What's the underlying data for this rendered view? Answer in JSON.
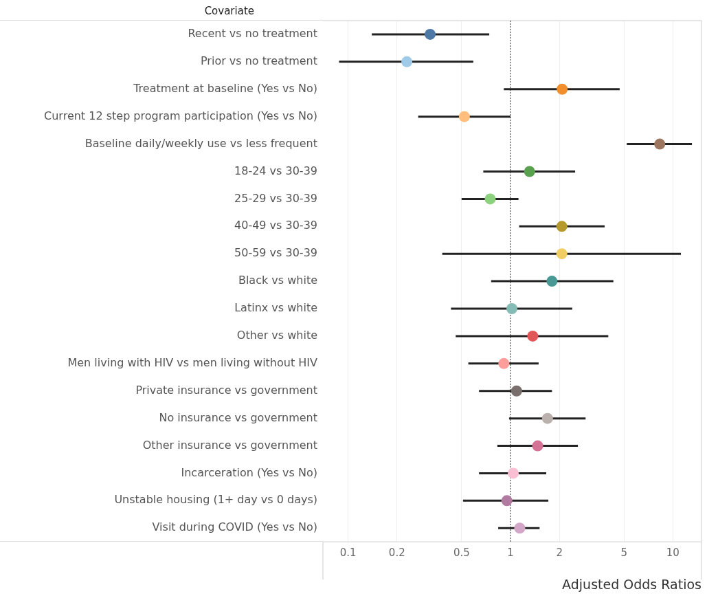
{
  "chart_data": {
    "type": "scatter",
    "orientation": "horizontal",
    "ylabel": "Covariate",
    "xlabel": "Adjusted Odds Ratios",
    "categories": [
      "Recent vs no treatment",
      "Prior vs no treatment",
      "Treatment at baseline (Yes vs No)",
      "Current 12 step program participation (Yes vs No)",
      "Baseline daily/weekly use vs less frequent",
      "18-24 vs 30-39",
      "25-29 vs 30-39",
      "40-49 vs 30-39",
      "50-59 vs 30-39",
      "Black vs white",
      "Latinx vs white",
      "Other vs white",
      "Men living with HIV vs men living without HIV",
      "Private insurance vs government",
      "No insurance vs government",
      "Other insurance vs government",
      "Incarceration (Yes vs No)",
      "Unstable housing (1+ day vs 0 days)",
      "Visit during COVID (Yes vs No)"
    ],
    "values": [
      0.32,
      0.23,
      2.08,
      0.52,
      8.3,
      1.31,
      0.75,
      2.07,
      2.07,
      1.8,
      1.02,
      1.37,
      0.91,
      1.09,
      1.69,
      1.47,
      1.04,
      0.95,
      1.14
    ],
    "errors": [
      [
        0.14,
        0.74
      ],
      [
        0.088,
        0.59
      ],
      [
        0.91,
        4.7
      ],
      [
        0.27,
        1.0
      ],
      [
        5.2,
        13.1
      ],
      [
        0.68,
        2.5
      ],
      [
        0.5,
        1.12
      ],
      [
        1.13,
        3.8
      ],
      [
        0.38,
        11.2
      ],
      [
        0.76,
        4.3
      ],
      [
        0.43,
        2.4
      ],
      [
        0.46,
        4.0
      ],
      [
        0.55,
        1.49
      ],
      [
        0.64,
        1.8
      ],
      [
        0.98,
        2.9
      ],
      [
        0.83,
        2.6
      ],
      [
        0.64,
        1.66
      ],
      [
        0.51,
        1.71
      ],
      [
        0.84,
        1.51
      ]
    ],
    "colors": [
      "#4e79a7",
      "#a0cbe8",
      "#f28e2b",
      "#ffbe7d",
      "#9d7660",
      "#59a14f",
      "#8cd17d",
      "#b6992d",
      "#f1ce63",
      "#499894",
      "#86bcb6",
      "#e15759",
      "#ff9d9a",
      "#79706e",
      "#bab0ac",
      "#d37295",
      "#fabfd2",
      "#b07aa1",
      "#d4a6c8"
    ],
    "xlim": [
      0.07,
      15
    ],
    "xticks": [
      0.1,
      0.2,
      0.5,
      1,
      2,
      5,
      10
    ],
    "log": "x",
    "grid": "x",
    "marker": "circle",
    "ref_lines": [
      {
        "axis": "x",
        "value": 1,
        "line_style": "dotted",
        "color": "#333333"
      }
    ]
  }
}
